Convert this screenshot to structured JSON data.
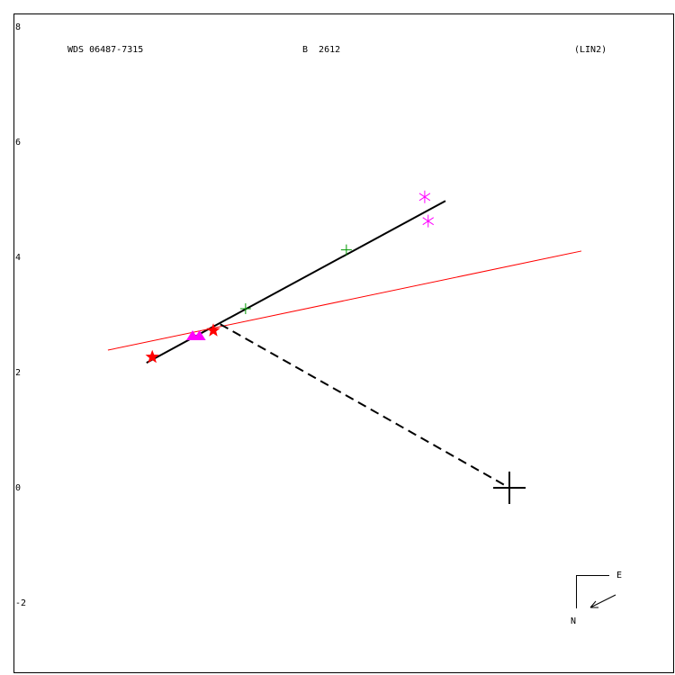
{
  "chart_data": {
    "type": "scatter",
    "title": "WDS 06487-7315",
    "subtitle": "B  2612",
    "annotation": "(LIN2)",
    "compass": {
      "east": "E",
      "north": "N"
    },
    "xlim": [
      -8.609,
      2.875
    ],
    "ylim": [
      -3.219,
      8.234
    ],
    "yticks": [
      -2,
      0,
      2,
      4,
      6,
      8
    ],
    "grid": false,
    "lines": [
      {
        "color": "#000000",
        "dashed": false,
        "x": [
          -6.3,
          -1.11
        ],
        "values": [
          2.17,
          4.98
        ]
      },
      {
        "color": "#ff0000",
        "dashed": false,
        "x": [
          -6.97,
          1.25
        ],
        "values": [
          2.39,
          4.11
        ]
      },
      {
        "color": "#000000",
        "dashed": true,
        "x": [
          -5.02,
          0
        ],
        "values": [
          2.84,
          0
        ]
      }
    ],
    "series": [
      {
        "marker": "star",
        "color": "#ff0000",
        "x": [
          -6.2,
          -5.14
        ],
        "values": [
          2.27,
          2.73
        ]
      },
      {
        "marker": "triangle",
        "color": "#ff00ff",
        "x": [
          -5.5,
          -5.38
        ],
        "values": [
          2.64,
          2.64
        ]
      },
      {
        "marker": "plus",
        "color": "#009900",
        "x": [
          -4.58,
          -2.83
        ],
        "values": [
          3.11,
          4.13
        ]
      },
      {
        "marker": "asterisk",
        "color": "#ff00ff",
        "x": [
          -1.47,
          -1.41
        ],
        "values": [
          5.05,
          4.63
        ]
      },
      {
        "marker": "cross",
        "color": "#000000",
        "x": [
          0
        ],
        "values": [
          0
        ]
      }
    ]
  }
}
